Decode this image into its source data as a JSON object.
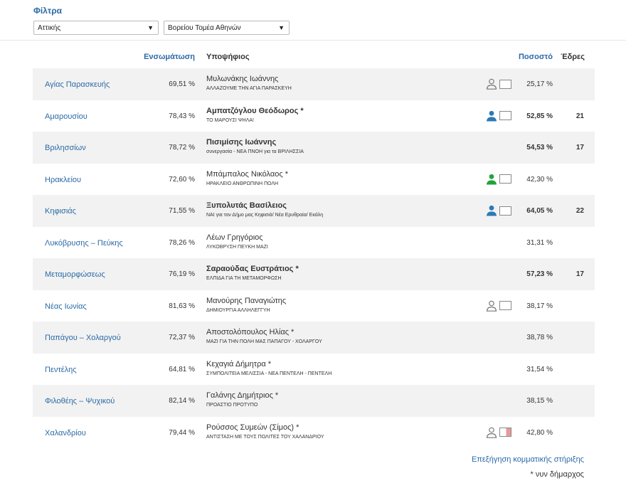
{
  "filters": {
    "title": "Φίλτρα",
    "region": "Αττικής",
    "sector": "Βορείου Τομέα Αθηνών"
  },
  "table": {
    "headers": {
      "ensomatosi": "Ενσωμάτωση",
      "ypopsifios": "Υποψήφιος",
      "pososto": "Ποσοστό",
      "edres": "Έδρες"
    },
    "rows": [
      {
        "muni": "Αγίας Παρασκευής",
        "ensom": "69,51 %",
        "name": "Μυλωνάκης Ιωάννης",
        "party": "ΑΛΛΑΖΟΥΜΕ ΤΗΝ ΑΓΙΑ ΠΑΡΑΣΚΕΥΗ",
        "pct": "25,17 %",
        "seats": "",
        "bold": false,
        "icon": "person-outline-icon",
        "box": "plain"
      },
      {
        "muni": "Αμαρουσίου",
        "ensom": "78,43 %",
        "name": "Αμπατζόγλου Θεόδωρος *",
        "party": "ΤΟ ΜΑΡΟΥΣΙ ΨΗΛΑ!",
        "pct": "52,85 %",
        "seats": "21",
        "bold": true,
        "icon": "person-blue-icon",
        "box": "plain"
      },
      {
        "muni": "Βριλησσίων",
        "ensom": "78,72 %",
        "name": "Πισιμίσης Ιωάννης",
        "party": "συνεργασία - ΝΕΑ ΠΝΟΗ για τα ΒΡΙΛΗΣΣΙΑ",
        "pct": "54,53 %",
        "seats": "17",
        "bold": true,
        "icon": "",
        "box": ""
      },
      {
        "muni": "Ηρακλείου",
        "ensom": "72,60 %",
        "name": "Μπάμπαλος Νικόλαος *",
        "party": "ΗΡΑΚΛΕΙΟ ΑΝΘΡΩΠΙΝΗ ΠΟΛΗ",
        "pct": "42,30 %",
        "seats": "",
        "bold": false,
        "icon": "person-green-icon",
        "box": "plain"
      },
      {
        "muni": "Κηφισιάς",
        "ensom": "71,55 %",
        "name": "Ξυπολυτάς Βασίλειος",
        "party": "ΝΑΙ για τον Δήμο μας Κηφισιά/ Νέα Ερυθραία/ Εκάλη",
        "pct": "64,05 %",
        "seats": "22",
        "bold": true,
        "icon": "person-blue-icon",
        "box": "plain"
      },
      {
        "muni": "Λυκόβρυσης – Πεύκης",
        "ensom": "78,26 %",
        "name": "Λέων Γρηγόριος",
        "party": "ΛΥΚΟΒΡΥΣΗ ΠΕΥΚΗ ΜΑΖΙ",
        "pct": "31,31 %",
        "seats": "",
        "bold": false,
        "icon": "",
        "box": ""
      },
      {
        "muni": "Μεταμορφώσεως",
        "ensom": "76,19 %",
        "name": "Σαραούδας Ευστράτιος *",
        "party": "ΕΛΠΙΔΑ ΓΙΑ ΤΗ ΜΕΤΑΜΟΡΦΩΣΗ",
        "pct": "57,23 %",
        "seats": "17",
        "bold": true,
        "icon": "",
        "box": ""
      },
      {
        "muni": "Νέας Ιωνίας",
        "ensom": "81,63 %",
        "name": "Μανούρης Παναγιώτης",
        "party": "ΔΗΜΙΟΥΡΓΙΑ ΑΛΛΗΛΕΓΓΥΗ",
        "pct": "38,17 %",
        "seats": "",
        "bold": false,
        "icon": "person-outline-icon",
        "box": "plain"
      },
      {
        "muni": "Παπάγου – Χολαργού",
        "ensom": "72,37 %",
        "name": "Αποστολόπουλος Ηλίας  *",
        "party": "ΜΑΖΙ ΓΙΑ ΤΗΝ ΠΟΛΗ ΜΑΣ ΠΑΠΑΓΟΥ - ΧΟΛΑΡΓΟΥ",
        "pct": "38,78 %",
        "seats": "",
        "bold": false,
        "icon": "",
        "box": ""
      },
      {
        "muni": "Πεντέλης",
        "ensom": "64,81 %",
        "name": "Κεχαγιά Δήμητρα *",
        "party": "ΣΥΜΠΟΛΙΤΕΙΑ ΜΕΛΙΣΣΙΑ - ΝΕΑ ΠΕΝΤΕΛΗ - ΠΕΝΤΕΛΗ",
        "pct": "31,54 %",
        "seats": "",
        "bold": false,
        "icon": "",
        "box": ""
      },
      {
        "muni": "Φιλοθέης – Ψυχικού",
        "ensom": "82,14 %",
        "name": "Γαλάνης Δημήτριος *",
        "party": "ΠΡΟΑΣΤΙΟ ΠΡΟΤΥΠΟ",
        "pct": "38,15 %",
        "seats": "",
        "bold": false,
        "icon": "",
        "box": ""
      },
      {
        "muni": "Χαλανδρίου",
        "ensom": "79,44 %",
        "name": "Ρούσσος Συμεών (Σίμος) *",
        "party": "ΑΝΤΙΣΤΑΣΗ ΜΕ ΤΟΥΣ ΠΟΛΙΤΕΣ ΤΟΥ ΧΑΛΑΝΔΡΙΟΥ",
        "pct": "42,80 %",
        "seats": "",
        "bold": false,
        "icon": "person-outline-icon",
        "box": "split"
      }
    ]
  },
  "footer": {
    "link": "Επεξήγηση κομματικής στήριξης",
    "note": "* νυν δήμαρχος"
  },
  "colors": {
    "link": "#2b6aa6",
    "person_blue": "#2a7ab8",
    "person_green": "#22a33c",
    "row_alt": "#f2f2f2",
    "box_red": "#e79a9a"
  }
}
